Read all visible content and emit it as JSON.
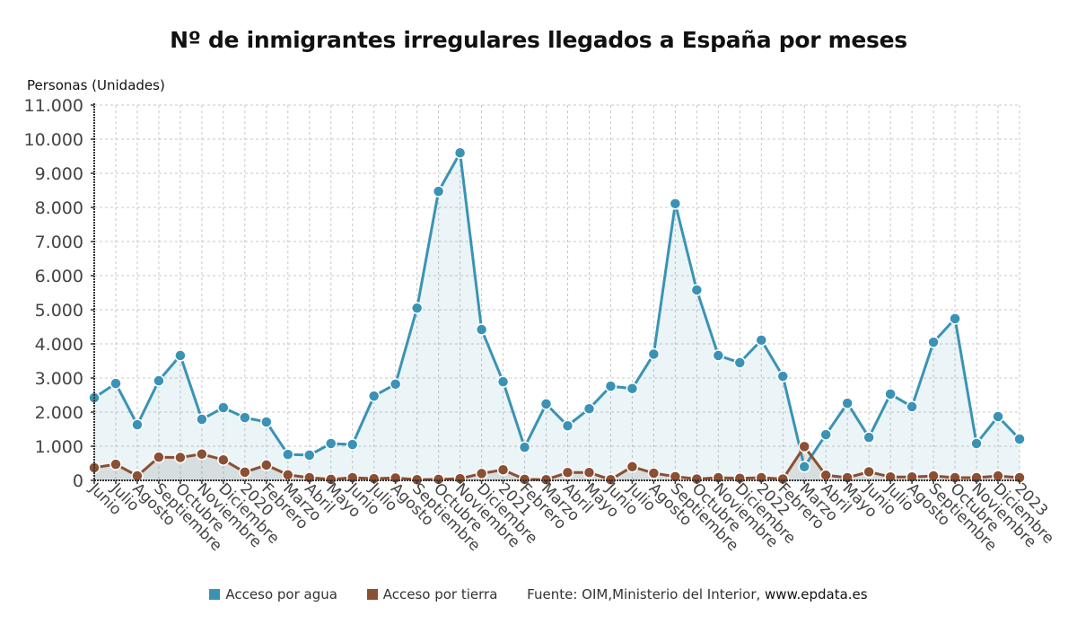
{
  "chart_data": {
    "type": "area",
    "title": "Nº de inmigrantes irregulares llegados a España por meses",
    "ylabel": "Personas (Unidades)",
    "xlabel": "",
    "ylim": [
      0,
      11000
    ],
    "yticks": [
      0,
      1000,
      2000,
      3000,
      4000,
      5000,
      6000,
      7000,
      8000,
      9000,
      10000,
      11000
    ],
    "ytick_labels": [
      "0",
      "1.000",
      "2.000",
      "3.000",
      "4.000",
      "5.000",
      "6.000",
      "7.000",
      "8.000",
      "9.000",
      "10.000",
      "11.000"
    ],
    "grid": true,
    "legend_position": "bottom",
    "categories": [
      "Junio",
      "Julio",
      "Agosto",
      "Septiembre",
      "Octubre",
      "Noviembre",
      "Diciembre",
      "2020",
      "Febrero",
      "Marzo",
      "Abril",
      "Mayo",
      "Junio",
      "Julio",
      "Agosto",
      "Septiembre",
      "Octubre",
      "Noviembre",
      "Diciembre",
      "2021",
      "Febrero",
      "Marzo",
      "Abril",
      "Mayo",
      "Junio",
      "Julio",
      "Agosto",
      "Septiembre",
      "Octubre",
      "Noviembre",
      "Diciembre",
      "2022",
      "Febrero",
      "Marzo",
      "Abril",
      "Mayo",
      "Junio",
      "Julio",
      "Agosto",
      "Septiembre",
      "Octubre",
      "Noviembre",
      "Diciembre",
      "2023"
    ],
    "series": [
      {
        "name": "Acceso por agua",
        "color": "#3a93b5",
        "values": [
          2420,
          2840,
          1630,
          2920,
          3660,
          1790,
          2130,
          1840,
          1710,
          760,
          740,
          1080,
          1050,
          2470,
          2820,
          5050,
          8470,
          9600,
          4420,
          2890,
          970,
          2240,
          1600,
          2100,
          2760,
          2690,
          3700,
          8110,
          5580,
          3660,
          3450,
          4110,
          3050,
          400,
          1340,
          2260,
          1260,
          2530,
          2160,
          4050,
          4740,
          1080,
          1870,
          1210
        ]
      },
      {
        "name": "Acceso por tierra",
        "color": "#8b4f33",
        "values": [
          370,
          470,
          130,
          680,
          670,
          770,
          600,
          240,
          450,
          160,
          80,
          30,
          80,
          50,
          70,
          20,
          30,
          50,
          200,
          310,
          30,
          20,
          230,
          230,
          20,
          400,
          210,
          110,
          40,
          80,
          60,
          80,
          40,
          990,
          150,
          80,
          250,
          100,
          100,
          130,
          80,
          80,
          130,
          80
        ]
      }
    ]
  },
  "legend": {
    "items": [
      {
        "label": "Acceso por agua",
        "color": "#3a93b5"
      },
      {
        "label": "Acceso por tierra",
        "color": "#8b4f33"
      }
    ],
    "source_prefix": "Fuente: OIM,Ministerio del Interior, ",
    "source_site": "www.epdata.es"
  }
}
